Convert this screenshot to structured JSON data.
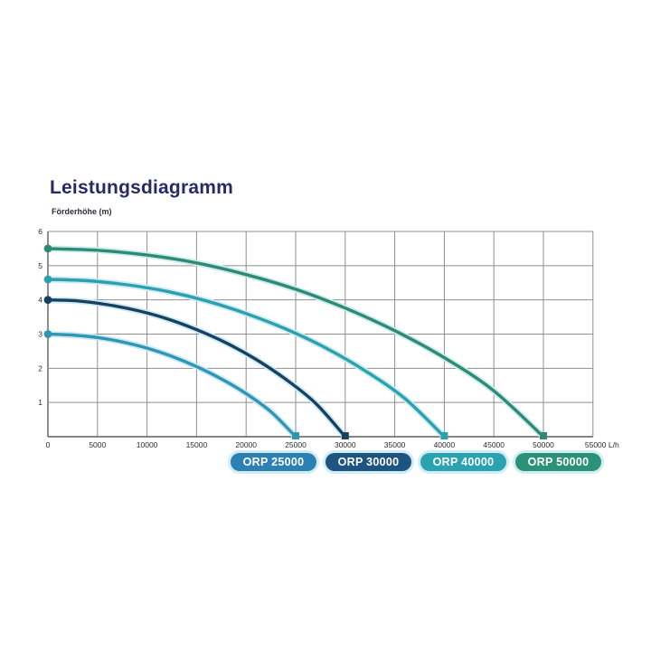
{
  "page": {
    "title": "Leistungsdiagramm",
    "y_axis_label": "Förderhöhe (m)",
    "x_axis_unit": "L/h"
  },
  "colors": {
    "title": "#2a2967",
    "grid": "#8f8f8f",
    "axis": "#5f5f5f",
    "tick_text": "#2b2b2b",
    "curve_glow": "#cceaf4",
    "background": "#ffffff"
  },
  "chart_data": {
    "type": "line",
    "title": "Leistungsdiagramm",
    "xlabel": "L/h",
    "ylabel": "Förderhöhe (m)",
    "xlim": [
      0,
      55000
    ],
    "ylim": [
      0,
      6
    ],
    "grid": true,
    "legend_position": "bottom",
    "x_ticks": [
      0,
      5000,
      10000,
      15000,
      20000,
      25000,
      30000,
      35000,
      40000,
      45000,
      50000,
      55000
    ],
    "x_tick_labels": [
      "0",
      "5000",
      "10000",
      "15000",
      "20000",
      "25000",
      "30000",
      "35000",
      "40000",
      "45000",
      "50000",
      "55000 L/h"
    ],
    "y_ticks": [
      1,
      2,
      3,
      4,
      5,
      6
    ],
    "y_tick_labels": [
      "1",
      "2",
      "3",
      "4",
      "5",
      "6"
    ],
    "series": [
      {
        "name": "ORP 25000",
        "color": "#2f96b4",
        "max_head_m": 3.0,
        "max_flow_lh": 25000,
        "points": [
          [
            0,
            3.0
          ],
          [
            2500,
            2.97
          ],
          [
            5000,
            2.9
          ],
          [
            7500,
            2.77
          ],
          [
            10000,
            2.59
          ],
          [
            12500,
            2.35
          ],
          [
            15000,
            2.05
          ],
          [
            17500,
            1.69
          ],
          [
            20000,
            1.26
          ],
          [
            22500,
            0.73
          ],
          [
            25000,
            0
          ]
        ]
      },
      {
        "name": "ORP 30000",
        "color": "#17415f",
        "max_head_m": 4.0,
        "max_flow_lh": 30000,
        "points": [
          [
            0,
            4.0
          ],
          [
            3000,
            3.97
          ],
          [
            6000,
            3.86
          ],
          [
            9000,
            3.69
          ],
          [
            12000,
            3.45
          ],
          [
            15000,
            3.13
          ],
          [
            18000,
            2.74
          ],
          [
            21000,
            2.26
          ],
          [
            24000,
            1.68
          ],
          [
            27000,
            0.98
          ],
          [
            30000,
            0
          ]
        ]
      },
      {
        "name": "ORP 40000",
        "color": "#2aa1ab",
        "max_head_m": 4.6,
        "max_flow_lh": 40000,
        "points": [
          [
            0,
            4.6
          ],
          [
            4000,
            4.56
          ],
          [
            8000,
            4.44
          ],
          [
            12000,
            4.25
          ],
          [
            16000,
            3.97
          ],
          [
            20000,
            3.6
          ],
          [
            24000,
            3.15
          ],
          [
            28000,
            2.6
          ],
          [
            32000,
            1.93
          ],
          [
            36000,
            1.12
          ],
          [
            40000,
            0
          ]
        ]
      },
      {
        "name": "ORP 50000",
        "color": "#2e8b70",
        "max_head_m": 5.5,
        "max_flow_lh": 50000,
        "points": [
          [
            0,
            5.5
          ],
          [
            5000,
            5.45
          ],
          [
            10000,
            5.31
          ],
          [
            15000,
            5.08
          ],
          [
            20000,
            4.74
          ],
          [
            25000,
            4.31
          ],
          [
            30000,
            3.76
          ],
          [
            35000,
            3.1
          ],
          [
            40000,
            2.31
          ],
          [
            45000,
            1.34
          ],
          [
            50000,
            0
          ]
        ]
      }
    ]
  },
  "legend": {
    "items": [
      {
        "label": "ORP 25000",
        "color": "#2d80b4"
      },
      {
        "label": "ORP 30000",
        "color": "#1d5480"
      },
      {
        "label": "ORP 40000",
        "color": "#2aa2b0"
      },
      {
        "label": "ORP 50000",
        "color": "#2b9277"
      }
    ]
  }
}
